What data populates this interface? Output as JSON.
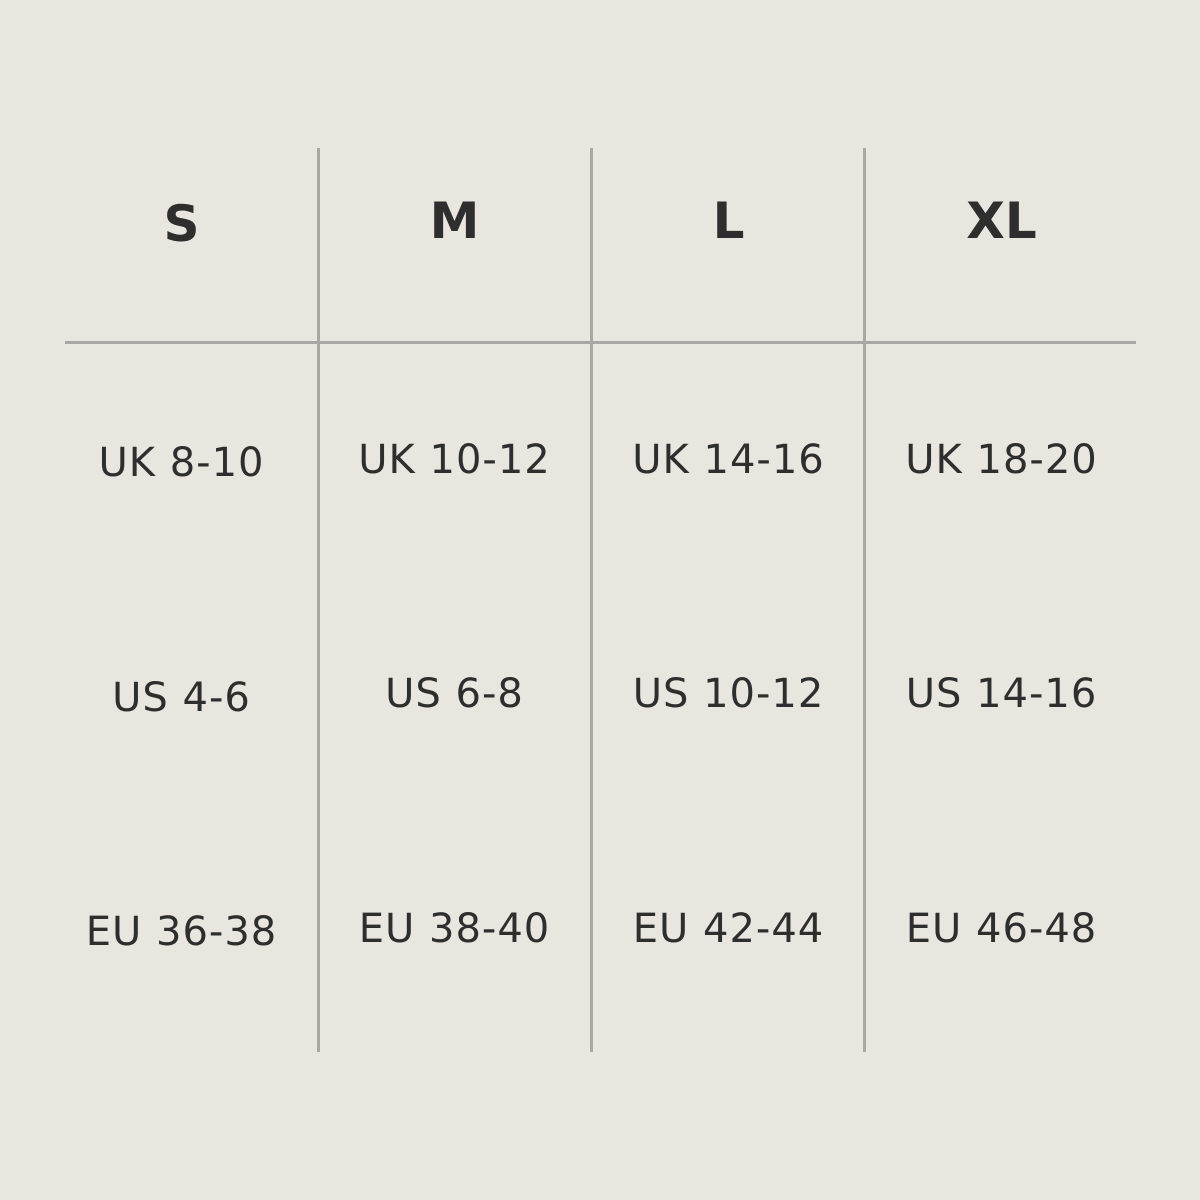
{
  "columns": [
    {
      "size": "S",
      "uk": "UK 8-10",
      "us": "US 4-6",
      "eu": "EU 36-38"
    },
    {
      "size": "M",
      "uk": "UK 10-12",
      "us": "US 6-8",
      "eu": "EU 38-40"
    },
    {
      "size": "L",
      "uk": "UK 14-16",
      "us": "US 10-12",
      "eu": "EU 42-44"
    },
    {
      "size": "XL",
      "uk": "UK 18-20",
      "us": "US 14-16",
      "eu": "EU 46-48"
    }
  ],
  "colors": {
    "background": "#e9e6e0",
    "lines": "#a9a7a3",
    "text": "#2e2e2e"
  }
}
